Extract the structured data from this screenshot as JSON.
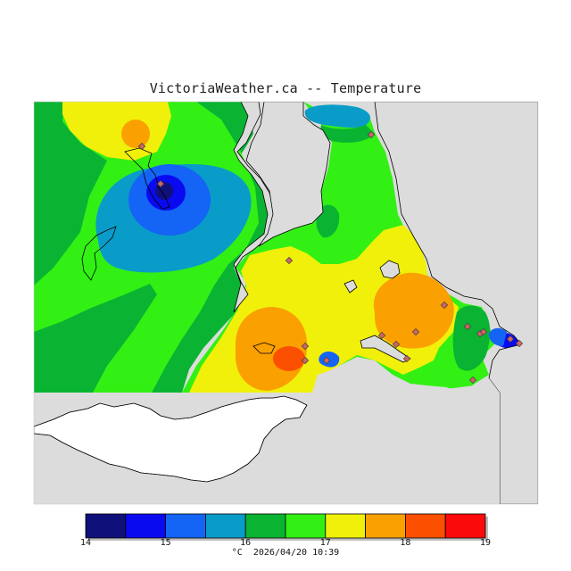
{
  "title": "VictoriaWeather.ca -- Temperature",
  "legend": {
    "ticks": [
      "14",
      "15",
      "16",
      "17",
      "18",
      "19"
    ],
    "unit": "°C",
    "timestamp": "2026/04/20 10:39",
    "bins": [
      {
        "min": 14.0,
        "max": 14.5,
        "color": "#10107a"
      },
      {
        "min": 14.5,
        "max": 15.0,
        "color": "#0a0af0"
      },
      {
        "min": 15.0,
        "max": 15.5,
        "color": "#1464f5"
      },
      {
        "min": 15.5,
        "max": 16.0,
        "color": "#0a9cc8"
      },
      {
        "min": 16.0,
        "max": 16.5,
        "color": "#0ab432"
      },
      {
        "min": 16.5,
        "max": 17.0,
        "color": "#32f014"
      },
      {
        "min": 17.0,
        "max": 17.5,
        "color": "#f0f00a"
      },
      {
        "min": 17.5,
        "max": 18.0,
        "color": "#faa000"
      },
      {
        "min": 18.0,
        "max": 18.5,
        "color": "#fa5000"
      },
      {
        "min": 18.5,
        "max": 19.0,
        "color": "#fa0a0a"
      }
    ]
  },
  "colors": {
    "land_gray": "#dcdcdc",
    "coast": "#000000",
    "station": "#d26464"
  }
}
